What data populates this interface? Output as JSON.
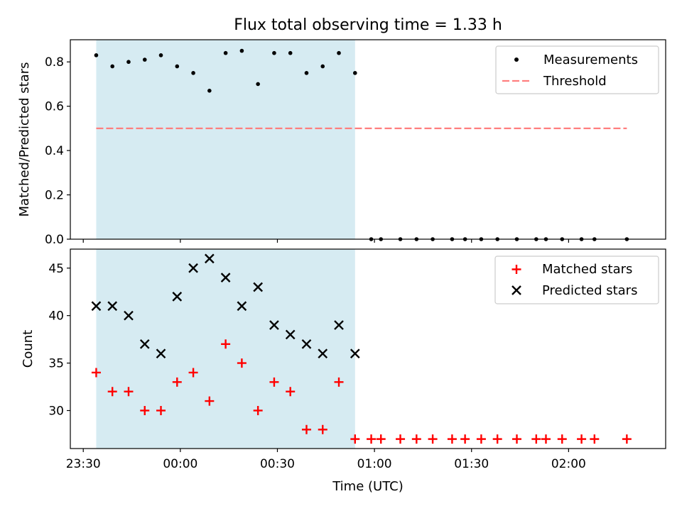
{
  "chart_data": [
    {
      "type": "scatter",
      "title": "Flux total observing time = 1.33 h",
      "xlabel": "",
      "ylabel": "Matched/Predicted stars",
      "ylim": [
        0,
        0.9
      ],
      "yticks": [
        "0.0",
        "0.2",
        "0.4",
        "0.6",
        "0.8"
      ],
      "xlim": [
        "23:26",
        "02:30"
      ],
      "shaded_span": {
        "start": "23:34",
        "end": "00:54",
        "color": "#add8e6"
      },
      "threshold": {
        "value": 0.5,
        "x_start": "23:34",
        "x_end": "02:18",
        "color": "#ff7f7f",
        "style": "dashed"
      },
      "legend_position": "top-right",
      "legend": {
        "measurements": "Measurements",
        "threshold": "Threshold"
      },
      "series": [
        {
          "name": "Measurements",
          "marker": "dot",
          "color": "#000000",
          "x": [
            "23:34",
            "23:39",
            "23:44",
            "23:49",
            "23:54",
            "23:59",
            "00:04",
            "00:09",
            "00:14",
            "00:19",
            "00:24",
            "00:29",
            "00:34",
            "00:39",
            "00:44",
            "00:49",
            "00:54",
            "00:59",
            "01:02",
            "01:08",
            "01:13",
            "01:18",
            "01:24",
            "01:28",
            "01:33",
            "01:38",
            "01:44",
            "01:50",
            "01:53",
            "01:58",
            "02:04",
            "02:08",
            "02:18"
          ],
          "values": [
            0.83,
            0.78,
            0.8,
            0.81,
            0.83,
            0.78,
            0.75,
            0.67,
            0.84,
            0.85,
            0.7,
            0.84,
            0.84,
            0.75,
            0.78,
            0.84,
            0.75,
            0,
            0,
            0,
            0,
            0,
            0,
            0,
            0,
            0,
            0,
            0,
            0,
            0,
            0,
            0,
            0
          ]
        }
      ]
    },
    {
      "type": "scatter",
      "title": "",
      "xlabel": "Time (UTC)",
      "ylabel": "Count",
      "ylim": [
        26,
        47
      ],
      "yticks": [
        "30",
        "35",
        "40",
        "45"
      ],
      "xlim": [
        "23:26",
        "02:30"
      ],
      "xticks": [
        "23:30",
        "00:00",
        "00:30",
        "01:00",
        "01:30",
        "02:00"
      ],
      "shaded_span": {
        "start": "23:34",
        "end": "00:54",
        "color": "#add8e6"
      },
      "legend_position": "top-right",
      "legend": {
        "matched": "Matched stars",
        "predicted": "Predicted stars"
      },
      "series": [
        {
          "name": "Matched stars",
          "marker": "plus",
          "color": "#ff0000",
          "x": [
            "23:34",
            "23:39",
            "23:44",
            "23:49",
            "23:54",
            "23:59",
            "00:04",
            "00:09",
            "00:14",
            "00:19",
            "00:24",
            "00:29",
            "00:34",
            "00:39",
            "00:44",
            "00:49",
            "00:54",
            "00:59",
            "01:02",
            "01:08",
            "01:13",
            "01:18",
            "01:24",
            "01:28",
            "01:33",
            "01:38",
            "01:44",
            "01:50",
            "01:53",
            "01:58",
            "02:04",
            "02:08",
            "02:18"
          ],
          "values": [
            34,
            32,
            32,
            30,
            30,
            33,
            34,
            31,
            37,
            35,
            30,
            33,
            32,
            28,
            28,
            33,
            27,
            27,
            27,
            27,
            27,
            27,
            27,
            27,
            27,
            27,
            27,
            27,
            27,
            27,
            27,
            27,
            27
          ]
        },
        {
          "name": "Predicted stars",
          "marker": "x",
          "color": "#000000",
          "x": [
            "23:34",
            "23:39",
            "23:44",
            "23:49",
            "23:54",
            "23:59",
            "00:04",
            "00:09",
            "00:14",
            "00:19",
            "00:24",
            "00:29",
            "00:34",
            "00:39",
            "00:44",
            "00:49",
            "00:54"
          ],
          "values": [
            41,
            41,
            40,
            37,
            36,
            42,
            45,
            46,
            44,
            41,
            43,
            39,
            38,
            37,
            36,
            39,
            36
          ]
        }
      ]
    }
  ]
}
